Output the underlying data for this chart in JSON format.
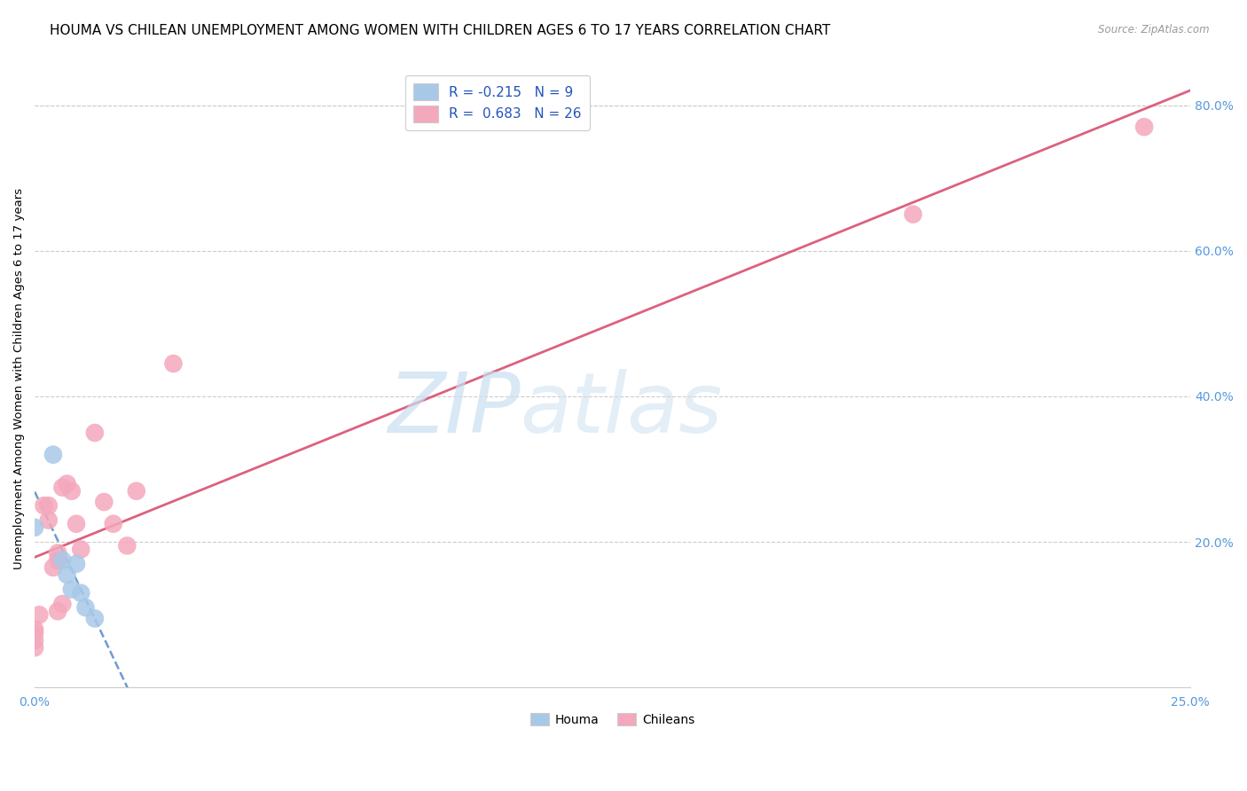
{
  "title": "HOUMA VS CHILEAN UNEMPLOYMENT AMONG WOMEN WITH CHILDREN AGES 6 TO 17 YEARS CORRELATION CHART",
  "source": "Source: ZipAtlas.com",
  "ylabel": "Unemployment Among Women with Children Ages 6 to 17 years",
  "xlim": [
    0.0,
    0.25
  ],
  "ylim": [
    0.0,
    0.85
  ],
  "xticks": [
    0.0,
    0.05,
    0.1,
    0.15,
    0.2,
    0.25
  ],
  "ytick_positions_right": [
    0.0,
    0.2,
    0.4,
    0.6,
    0.8
  ],
  "houma_R": -0.215,
  "houma_N": 9,
  "chilean_R": 0.683,
  "chilean_N": 26,
  "houma_color": "#a8c8e8",
  "chilean_color": "#f4a8bc",
  "houma_line_color": "#5588cc",
  "chilean_line_color": "#d95070",
  "watermark_zip": "ZIP",
  "watermark_atlas": "atlas",
  "houma_x": [
    0.0,
    0.004,
    0.006,
    0.007,
    0.008,
    0.009,
    0.01,
    0.011,
    0.013
  ],
  "houma_y": [
    0.22,
    0.32,
    0.175,
    0.155,
    0.135,
    0.17,
    0.13,
    0.11,
    0.095
  ],
  "chilean_x": [
    0.0,
    0.0,
    0.0,
    0.0,
    0.001,
    0.002,
    0.003,
    0.003,
    0.004,
    0.005,
    0.005,
    0.005,
    0.006,
    0.006,
    0.007,
    0.008,
    0.009,
    0.01,
    0.013,
    0.015,
    0.017,
    0.02,
    0.022,
    0.03,
    0.19,
    0.24
  ],
  "chilean_y": [
    0.08,
    0.075,
    0.065,
    0.055,
    0.1,
    0.25,
    0.25,
    0.23,
    0.165,
    0.185,
    0.175,
    0.105,
    0.275,
    0.115,
    0.28,
    0.27,
    0.225,
    0.19,
    0.35,
    0.255,
    0.225,
    0.195,
    0.27,
    0.445,
    0.65,
    0.77
  ],
  "background_color": "#ffffff",
  "grid_color": "#cccccc",
  "title_fontsize": 11,
  "axis_fontsize": 10,
  "legend_fontsize": 11,
  "right_tick_color": "#5599dd"
}
